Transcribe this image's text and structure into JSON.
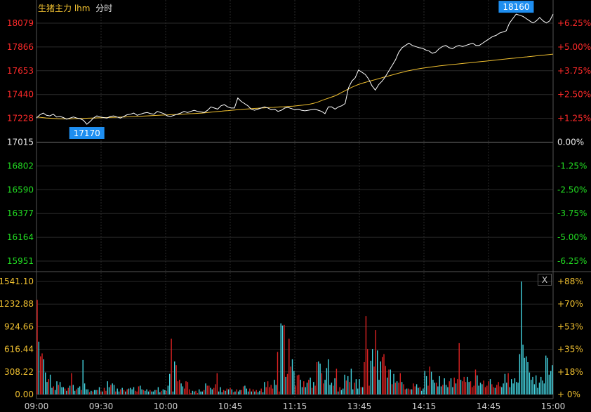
{
  "header": {
    "instrument": "生猪主力 lhm",
    "mode": "分时"
  },
  "close_label": "X",
  "colors": {
    "up": "#ff2a2a",
    "down": "#22dd22",
    "neutral": "#e6e6e6",
    "price": "#ffffff",
    "avg": "#f0c030",
    "vol_up": "#dd2222",
    "vol_down": "#44d4e0",
    "grid": "#2a2a2a",
    "badge": "#1e8ef0",
    "axis_vol": "#f0c030"
  },
  "chart_data": [
    {
      "type": "line",
      "title": "",
      "price_ticks": [
        "18079",
        "17866",
        "17653",
        "17440",
        "17228",
        "17015",
        "16802",
        "16590",
        "16377",
        "16164",
        "15951"
      ],
      "pct_ticks": [
        "+6.25%",
        "+5.00%",
        "+3.75%",
        "+2.50%",
        "+1.25%",
        "0.00%",
        "-1.25%",
        "-2.50%",
        "-3.75%",
        "-5.00%",
        "-6.25%"
      ],
      "ylim": [
        15951,
        18079
      ],
      "x_ticks": [
        "09:00",
        "09:30",
        "10:00",
        "10:45",
        "11:15",
        "13:45",
        "14:15",
        "14:45",
        "15:00"
      ],
      "high_label": "18160",
      "low_label": "17170",
      "series": [
        {
          "name": "",
          "values": [
            17230,
            17260,
            17275,
            17255,
            17250,
            17265,
            17240,
            17245,
            17235,
            17220,
            17230,
            17240,
            17230,
            17225,
            17210,
            17175,
            17200,
            17230,
            17250,
            17240,
            17235,
            17230,
            17245,
            17250,
            17240,
            17230,
            17245,
            17260,
            17265,
            17275,
            17255,
            17265,
            17275,
            17280,
            17270,
            17265,
            17290,
            17280,
            17270,
            17250,
            17245,
            17255,
            17265,
            17275,
            17290,
            17280,
            17290,
            17300,
            17290,
            17285,
            17280,
            17300,
            17330,
            17320,
            17310,
            17340,
            17350,
            17330,
            17320,
            17320,
            17410,
            17380,
            17360,
            17340,
            17310,
            17300,
            17310,
            17320,
            17330,
            17320,
            17305,
            17310,
            17290,
            17300,
            17320,
            17325,
            17315,
            17305,
            17310,
            17300,
            17295,
            17300,
            17305,
            17310,
            17300,
            17290,
            17270,
            17330,
            17330,
            17310,
            17330,
            17340,
            17360,
            17500,
            17560,
            17590,
            17660,
            17640,
            17620,
            17580,
            17520,
            17480,
            17530,
            17560,
            17600,
            17650,
            17700,
            17750,
            17820,
            17860,
            17880,
            17900,
            17880,
            17870,
            17860,
            17855,
            17840,
            17830,
            17810,
            17820,
            17850,
            17870,
            17880,
            17860,
            17850,
            17870,
            17880,
            17870,
            17880,
            17890,
            17900,
            17880,
            17880,
            17900,
            17920,
            17940,
            17960,
            17970,
            17990,
            18000,
            18010,
            18080,
            18120,
            18160,
            18150,
            18140,
            18120,
            18100,
            18080,
            18100,
            18130,
            18100,
            18080,
            18100,
            18160
          ]
        },
        {
          "name": "",
          "values": [
            17240,
            17237,
            17234,
            17231,
            17229,
            17227,
            17225,
            17224,
            17223,
            17223,
            17223,
            17224,
            17225,
            17226,
            17227,
            17228,
            17229,
            17230,
            17231,
            17232,
            17233,
            17234,
            17235,
            17236,
            17237,
            17238,
            17239,
            17240,
            17241,
            17242,
            17243,
            17244,
            17246,
            17248,
            17250,
            17251,
            17253,
            17254,
            17256,
            17257,
            17258,
            17260,
            17261,
            17262,
            17263,
            17265,
            17267,
            17269,
            17270,
            17272,
            17273,
            17275,
            17278,
            17281,
            17284,
            17287,
            17290,
            17292,
            17295,
            17297,
            17300,
            17302,
            17305,
            17307,
            17310,
            17312,
            17314,
            17316,
            17318,
            17320,
            17321,
            17323,
            17325,
            17326,
            17328,
            17330,
            17331,
            17333,
            17335,
            17337,
            17340,
            17343,
            17346,
            17350,
            17354,
            17360,
            17368,
            17378,
            17390,
            17400,
            17410,
            17420,
            17430,
            17445,
            17460,
            17475,
            17490,
            17505,
            17518,
            17530,
            17540,
            17548,
            17556,
            17564,
            17572,
            17580,
            17588,
            17596,
            17604,
            17612,
            17620,
            17628,
            17636,
            17643,
            17650,
            17656,
            17662,
            17668,
            17673,
            17677,
            17681,
            17685,
            17689,
            17693,
            17697,
            17700,
            17703,
            17706,
            17709,
            17712,
            17715,
            17718,
            17721,
            17724,
            17727,
            17730,
            17733,
            17736,
            17739,
            17742,
            17745,
            17748,
            17751,
            17754,
            17757,
            17760,
            17763,
            17766,
            17769,
            17772,
            17775,
            17778,
            17781,
            17784,
            17787,
            17790,
            17793,
            17796,
            17799,
            17802
          ]
        }
      ]
    },
    {
      "type": "bar",
      "title": "",
      "vol_ticks": [
        "1541.10",
        "1232.88",
        "924.66",
        "616.44",
        "308.22",
        "0.00"
      ],
      "vol_pct_ticks": [
        "+88%",
        "+70%",
        "+53%",
        "+35%",
        "+18%",
        "+ 0%"
      ],
      "ylim": [
        0,
        1541.1
      ],
      "values": [
        1290,
        720,
        520,
        560,
        480,
        300,
        170,
        210,
        270,
        90,
        110,
        60,
        180,
        130,
        170,
        100,
        100,
        80,
        50,
        90,
        120,
        290,
        130,
        50,
        70,
        90,
        110,
        60,
        470,
        150,
        70,
        70,
        30,
        50,
        40,
        60,
        60,
        60,
        100,
        40,
        40,
        90,
        50,
        180,
        100,
        130,
        150,
        130,
        40,
        80,
        40,
        70,
        90,
        60,
        40,
        70,
        80,
        90,
        70,
        100,
        50,
        40,
        110,
        120,
        70,
        60,
        50,
        70,
        40,
        60,
        40,
        40,
        60,
        60,
        100,
        30,
        50,
        70,
        60,
        50,
        120,
        280,
        760,
        40,
        450,
        400,
        180,
        200,
        150,
        110,
        80,
        180,
        170,
        70,
        20,
        50,
        40,
        50,
        20,
        70,
        40,
        40,
        60,
        150,
        120,
        120,
        90,
        70,
        90,
        140,
        290,
        40,
        100,
        30,
        60,
        50,
        80,
        70,
        90,
        70,
        30,
        40,
        70,
        40,
        60,
        60,
        110,
        120,
        80,
        40,
        80,
        40,
        70,
        40,
        60,
        30,
        50,
        80,
        30,
        170,
        100,
        180,
        100,
        130,
        80,
        200,
        130,
        580,
        40,
        970,
        940,
        950,
        240,
        280,
        760,
        380,
        480,
        320,
        120,
        260,
        270,
        200,
        100,
        180,
        100,
        160,
        200,
        230,
        90,
        170,
        120,
        440,
        450,
        420,
        290,
        150,
        200,
        360,
        480,
        130,
        160,
        120,
        220,
        350,
        40,
        100,
        60,
        80,
        270,
        190,
        250,
        170,
        350,
        70,
        160,
        210,
        80,
        210,
        100,
        100,
        440,
        1070,
        620,
        120,
        460,
        620,
        380,
        880,
        600,
        200,
        450,
        510,
        550,
        390,
        230,
        340,
        340,
        140,
        280,
        160,
        180,
        160,
        290,
        170,
        140,
        70,
        80,
        80,
        70,
        70,
        150,
        110,
        140,
        90,
        100,
        50,
        80,
        320,
        250,
        120,
        380,
        310,
        200,
        160,
        160,
        110,
        250,
        110,
        130,
        220,
        130,
        100,
        180,
        220,
        100,
        230,
        150,
        210,
        700,
        200,
        180,
        240,
        170,
        240,
        170,
        180,
        100,
        120,
        340,
        260,
        120,
        160,
        140,
        190,
        100,
        120,
        180,
        210,
        140,
        100,
        90,
        130,
        170,
        110,
        100,
        150,
        280,
        160,
        290,
        100,
        210,
        150,
        220,
        170,
        160,
        550,
        1540,
        680,
        500,
        520,
        440,
        300,
        200,
        240,
        140,
        260,
        90,
        160,
        240,
        190,
        150,
        530,
        500,
        270,
        320,
        400
      ],
      "directions": "uduudddudduddudddudududdudduddddududdududuuddudduddudududddduuudduddduddduddudduddudduuudduuuuudduuddduduudduuudddudududududduudddudududdudduuuuudduudduduuudduuudduddududuudduudddddudududddududduddduduuuudduuddduuududududuuduuduuduuddudddduudddudddudddudduduuduuudduuuudddduuuuduuduuuddddu"
    }
  ]
}
